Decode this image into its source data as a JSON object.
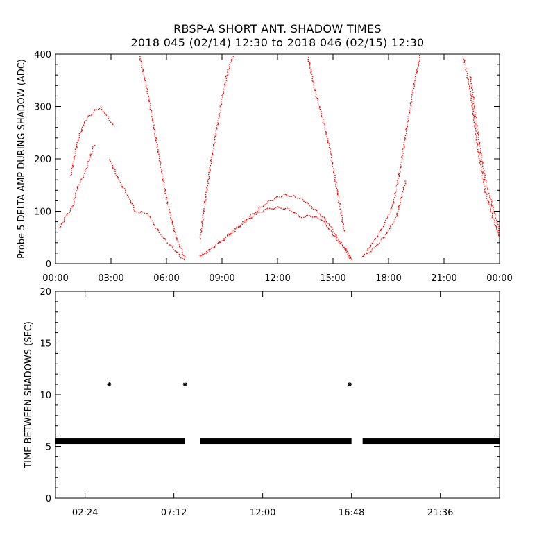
{
  "chart_data": [
    {
      "type": "scatter",
      "title": "RBSP-A SHORT ANT. SHADOW TIMES",
      "subtitle": "2018 045 (02/14) 12:30 to 2018 046 (02/15) 12:30",
      "xlabel": "",
      "ylabel": "Probe 5 DELTA AMP DURING SHADOW (ADC)",
      "x_unit": "hours",
      "xlim": [
        0,
        24
      ],
      "ylim": [
        0,
        400
      ],
      "xticks": [
        0,
        3,
        6,
        9,
        12,
        15,
        18,
        21,
        24
      ],
      "xtick_labels": [
        "00:00",
        "03:00",
        "06:00",
        "09:00",
        "12:00",
        "15:00",
        "18:00",
        "21:00",
        "00:00"
      ],
      "yticks": [
        0,
        100,
        200,
        300,
        400
      ],
      "ytick_labels": [
        "0",
        "100",
        "200",
        "300",
        "400"
      ],
      "grid": false,
      "color": "#ff0000",
      "series": [
        {
          "x": [
            0.0,
            0.3,
            0.6,
            0.9,
            1.2,
            1.5,
            1.8,
            2.1
          ],
          "y": [
            65,
            75,
            95,
            110,
            150,
            170,
            200,
            230
          ]
        },
        {
          "x": [
            0.8,
            1.2,
            1.6,
            2.0,
            2.4,
            2.8,
            3.2
          ],
          "y": [
            170,
            240,
            275,
            290,
            300,
            280,
            260
          ]
        },
        {
          "x": [
            2.9,
            3.4,
            3.9,
            4.3,
            4.7,
            5.0,
            5.4,
            5.8,
            6.2,
            6.6,
            7.0
          ],
          "y": [
            200,
            160,
            130,
            100,
            100,
            95,
            70,
            50,
            35,
            20,
            5
          ]
        },
        {
          "x": [
            4.5,
            5.0,
            5.5,
            6.0,
            6.5,
            7.0
          ],
          "y": [
            400,
            320,
            220,
            120,
            50,
            10
          ]
        },
        {
          "x": [
            7.8,
            8.3,
            8.8,
            9.3,
            9.8,
            10.3,
            10.8,
            11.3,
            11.8,
            12.3,
            12.8,
            13.3,
            13.8,
            14.3,
            14.8,
            15.3,
            15.7,
            16.0
          ],
          "y": [
            15,
            25,
            40,
            55,
            70,
            85,
            100,
            115,
            125,
            132,
            130,
            125,
            110,
            95,
            75,
            45,
            25,
            5
          ]
        },
        {
          "x": [
            7.8,
            8.4,
            9.0,
            9.6,
            10.2,
            10.8,
            11.4,
            12.0,
            12.6,
            13.2,
            13.8,
            14.4,
            15.0,
            15.6,
            16.0
          ],
          "y": [
            15,
            30,
            45,
            62,
            80,
            95,
            105,
            108,
            105,
            90,
            92,
            85,
            55,
            30,
            8
          ]
        },
        {
          "x": [
            7.8,
            8.1,
            8.4,
            8.7,
            9.0,
            9.3,
            9.6
          ],
          "y": [
            50,
            130,
            200,
            260,
            320,
            370,
            400
          ]
        },
        {
          "x": [
            13.6,
            14.0,
            14.4,
            14.8,
            15.2,
            15.6
          ],
          "y": [
            400,
            330,
            280,
            220,
            140,
            60
          ]
        },
        {
          "x": [
            16.6,
            17.0,
            17.4,
            17.8,
            18.2,
            18.6,
            19.0,
            19.4,
            19.7
          ],
          "y": [
            15,
            35,
            55,
            80,
            110,
            180,
            270,
            350,
            400
          ]
        },
        {
          "x": [
            16.6,
            17.2,
            17.8,
            18.4,
            18.9
          ],
          "y": [
            15,
            30,
            55,
            90,
            160
          ]
        },
        {
          "x": [
            22.0,
            22.4,
            22.8,
            23.2,
            23.6,
            24.0
          ],
          "y": [
            400,
            330,
            220,
            140,
            90,
            50
          ]
        },
        {
          "x": [
            22.4,
            22.8,
            23.2,
            23.6,
            24.0
          ],
          "y": [
            360,
            250,
            160,
            110,
            60
          ]
        }
      ]
    },
    {
      "type": "scatter",
      "xlabel": "",
      "ylabel": "TIME BETWEEN SHADOWS (SEC)",
      "x_unit": "hours",
      "xlim": [
        0,
        24
      ],
      "ylim": [
        0,
        20
      ],
      "xticks": [
        1.6,
        6.4,
        11.2,
        16.0,
        20.8
      ],
      "xtick_labels": [
        "02:24",
        "07:12",
        "12:00",
        "16:48",
        "21:36"
      ],
      "yticks": [
        0,
        5,
        10,
        15,
        20
      ],
      "ytick_labels": [
        "0",
        "5",
        "10",
        "15",
        "20"
      ],
      "grid": false,
      "color": "#000000",
      "baseline_value": 5.5,
      "baseline_segments": [
        [
          0.0,
          7.0
        ],
        [
          7.8,
          16.0
        ],
        [
          16.6,
          24.0
        ]
      ],
      "outliers": [
        {
          "x": 2.9,
          "y": 11.0
        },
        {
          "x": 7.0,
          "y": 11.0
        },
        {
          "x": 15.9,
          "y": 11.0
        }
      ]
    }
  ]
}
